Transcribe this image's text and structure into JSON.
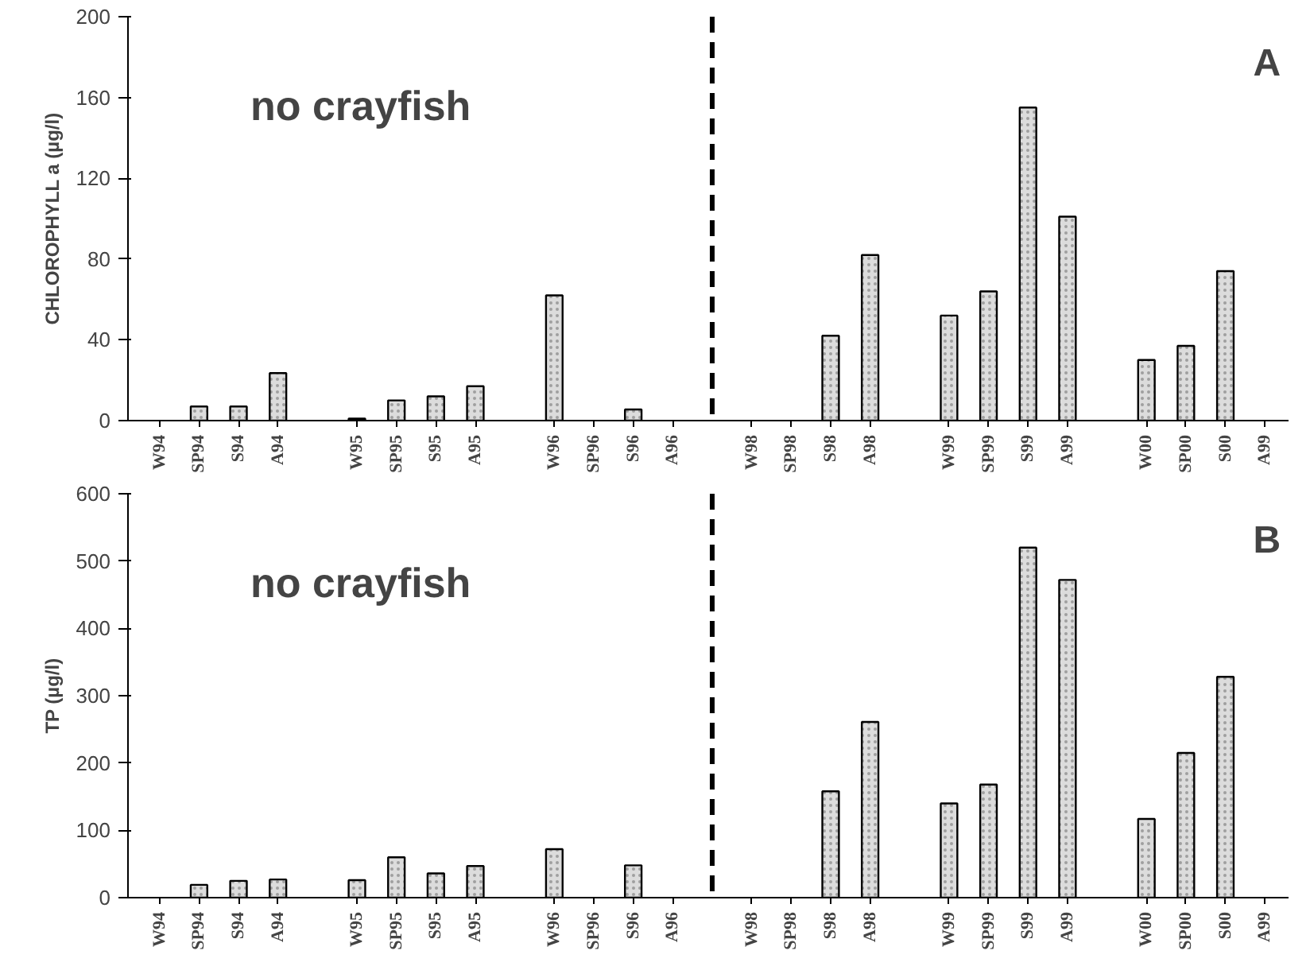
{
  "chart_data": [
    {
      "type": "bar",
      "ylabel": "CHLOROPHYLL a (µg/l)",
      "annotations": [
        "no crayfish",
        "A"
      ],
      "categories": [
        "W94",
        "SP94",
        "S94",
        "A94",
        null,
        "W95",
        "SP95",
        "S95",
        "A95",
        null,
        "W96",
        "SP96",
        "S96",
        "A96",
        null,
        "W98",
        "SP98",
        "S98",
        "A98",
        null,
        "W99",
        "SP99",
        "S99",
        "A99",
        null,
        "W00",
        "SP00",
        "S00",
        "A99"
      ],
      "values": [
        null,
        7,
        7,
        23.5,
        null,
        1,
        10,
        12,
        17,
        null,
        62,
        null,
        5.5,
        null,
        null,
        null,
        null,
        42,
        82,
        null,
        52,
        64,
        155,
        101,
        null,
        30,
        37,
        74,
        null
      ],
      "color": "#dcdcdc",
      "ylim": [
        0,
        200
      ],
      "yticks": [
        0,
        40,
        80,
        120,
        160,
        200
      ]
    },
    {
      "type": "bar",
      "ylabel": "TP (µg/l)",
      "annotations": [
        "no crayfish",
        "B"
      ],
      "categories": [
        "W94",
        "SP94",
        "S94",
        "A94",
        null,
        "W95",
        "SP95",
        "S95",
        "A95",
        null,
        "W96",
        "SP96",
        "S96",
        "A96",
        null,
        "W98",
        "SP98",
        "S98",
        "A98",
        null,
        "W99",
        "SP99",
        "S99",
        "A99",
        null,
        "W00",
        "SP00",
        "S00",
        "A99"
      ],
      "values": [
        null,
        19,
        25,
        27,
        null,
        26,
        60,
        36,
        47,
        null,
        72,
        null,
        48,
        null,
        null,
        null,
        null,
        158,
        261,
        null,
        140,
        168,
        520,
        472,
        null,
        117,
        215,
        328,
        null
      ],
      "color": "#dcdcdc",
      "ylim": [
        0,
        600
      ],
      "yticks": [
        0,
        100,
        200,
        300,
        400,
        500,
        600
      ]
    }
  ]
}
